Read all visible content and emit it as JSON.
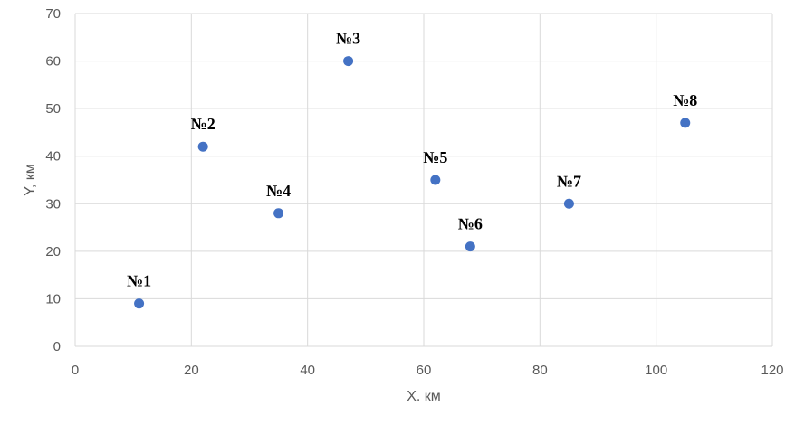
{
  "chart_data": {
    "type": "scatter",
    "title": "",
    "xlabel": "X. км",
    "ylabel": "Y, км",
    "xlim": [
      0,
      120
    ],
    "ylim": [
      0,
      70
    ],
    "x_ticks": [
      0,
      20,
      40,
      60,
      80,
      100,
      120
    ],
    "y_ticks": [
      0,
      10,
      20,
      30,
      40,
      50,
      60,
      70
    ],
    "grid": true,
    "legend": "none",
    "marker_color": "#4472C4",
    "grid_color": "#D9D9D9",
    "points": [
      {
        "label": "№1",
        "x": 11,
        "y": 9
      },
      {
        "label": "№2",
        "x": 22,
        "y": 42
      },
      {
        "label": "№3",
        "x": 47,
        "y": 60
      },
      {
        "label": "№4",
        "x": 35,
        "y": 28
      },
      {
        "label": "№5",
        "x": 62,
        "y": 35
      },
      {
        "label": "№6",
        "x": 68,
        "y": 21
      },
      {
        "label": "№7",
        "x": 85,
        "y": 30
      },
      {
        "label": "№8",
        "x": 105,
        "y": 47
      }
    ]
  }
}
